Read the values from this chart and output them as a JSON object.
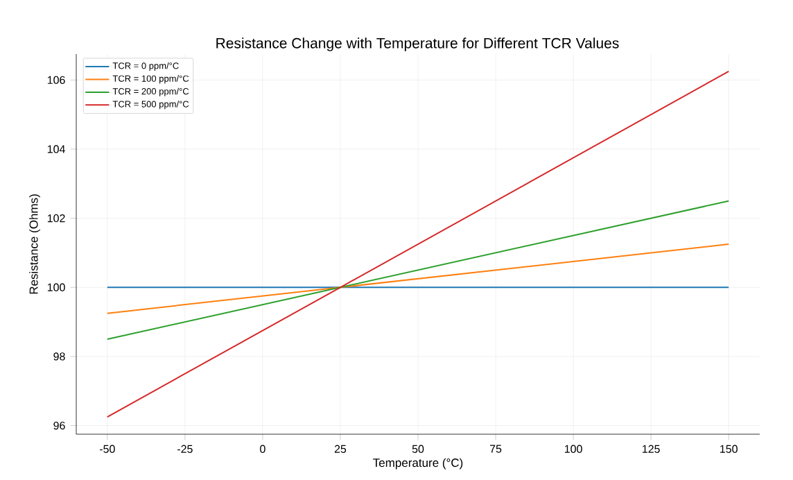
{
  "chart_data": {
    "type": "line",
    "title": "Resistance Change with Temperature for Different TCR Values",
    "xlabel": "Temperature (°C)",
    "ylabel": "Resistance (Ohms)",
    "x": [
      -50,
      25,
      150
    ],
    "series": [
      {
        "name": "TCR = 0 ppm/°C",
        "color": "#1f77b4",
        "values": [
          100,
          100,
          100
        ]
      },
      {
        "name": "TCR = 100 ppm/°C",
        "color": "#ff7f0e",
        "values": [
          99.25,
          100,
          101.25
        ]
      },
      {
        "name": "TCR = 200 ppm/°C",
        "color": "#2ca02c",
        "values": [
          98.5,
          100,
          102.5
        ]
      },
      {
        "name": "TCR = 500 ppm/°C",
        "color": "#d62728",
        "values": [
          96.25,
          100,
          106.25
        ]
      }
    ],
    "xlim": [
      -60,
      160
    ],
    "ylim": [
      95.75,
      106.75
    ],
    "xticks": [
      -50,
      -25,
      0,
      25,
      50,
      75,
      100,
      125,
      150
    ],
    "yticks": [
      96,
      98,
      100,
      102,
      104,
      106
    ],
    "grid": true,
    "legend": "top left",
    "marker": "none",
    "line_style": "solid"
  }
}
